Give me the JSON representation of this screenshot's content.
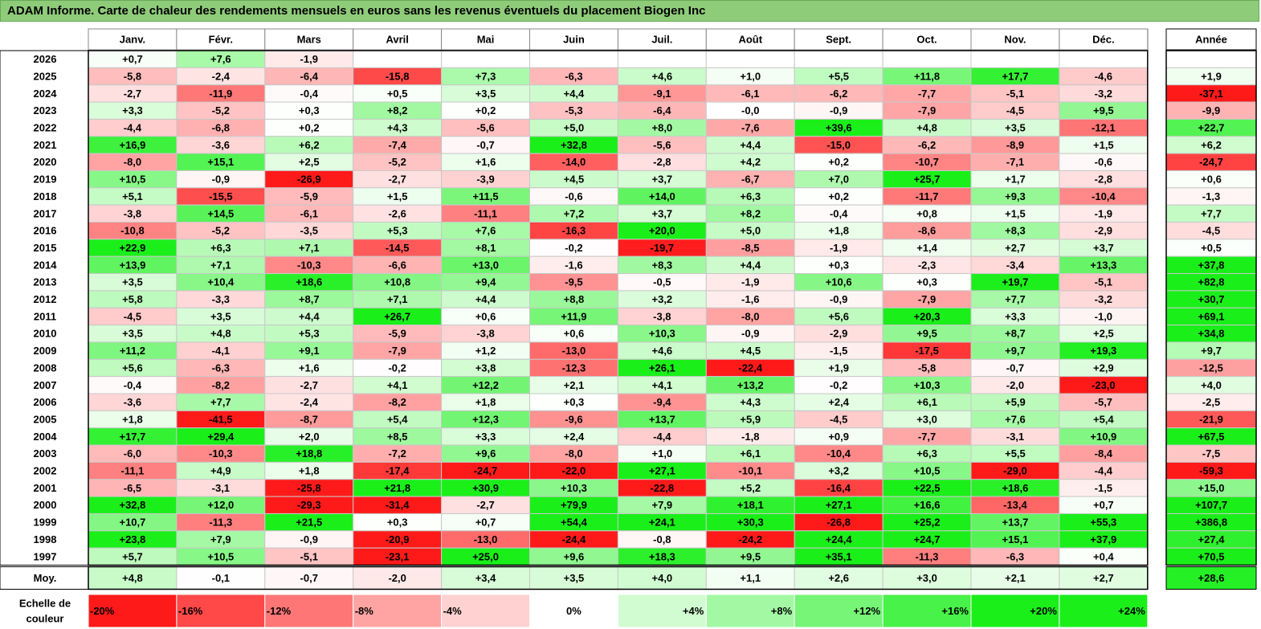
{
  "title": "ADAM Informe. Carte de chaleur des rendements mensuels en euros sans les revenus éventuels du placement Biogen Inc",
  "chart_data": {
    "type": "heatmap",
    "title": "ADAM Informe. Carte de chaleur des rendements mensuels en euros sans les revenus éventuels du placement Biogen Inc",
    "columns": [
      "Janv.",
      "Févr.",
      "Mars",
      "Avril",
      "Mai",
      "Juin",
      "Juil.",
      "Août",
      "Sept.",
      "Oct.",
      "Nov.",
      "Déc."
    ],
    "year_column_label": "Année",
    "rows": [
      {
        "year": "2026",
        "values": [
          "+0,7",
          "+7,6",
          "-1,9",
          "",
          "",
          "",
          "",
          "",
          "",
          "",
          "",
          ""
        ],
        "annual": ""
      },
      {
        "year": "2025",
        "values": [
          "-5,8",
          "-2,4",
          "-6,4",
          "-15,8",
          "+7,3",
          "-6,3",
          "+4,6",
          "+1,0",
          "+5,5",
          "+11,8",
          "+17,7",
          "-4,6"
        ],
        "annual": "+1,9"
      },
      {
        "year": "2024",
        "values": [
          "-2,7",
          "-11,9",
          "-0,4",
          "+0,5",
          "+3,5",
          "+4,4",
          "-9,1",
          "-6,1",
          "-6,2",
          "-7,7",
          "-5,1",
          "-3,2"
        ],
        "annual": "-37,1"
      },
      {
        "year": "2023",
        "values": [
          "+3,3",
          "-5,2",
          "+0,3",
          "+8,2",
          "+0,2",
          "-5,3",
          "-6,4",
          "-0,0",
          "-0,9",
          "-7,9",
          "-4,5",
          "+9,5"
        ],
        "annual": "-9,9"
      },
      {
        "year": "2022",
        "values": [
          "-4,4",
          "-6,8",
          "+0,2",
          "+4,3",
          "-5,6",
          "+5,0",
          "+8,0",
          "-7,6",
          "+39,6",
          "+4,8",
          "+3,5",
          "-12,1"
        ],
        "annual": "+22,7"
      },
      {
        "year": "2021",
        "values": [
          "+16,9",
          "-3,6",
          "+6,2",
          "-7,4",
          "-0,7",
          "+32,8",
          "-5,6",
          "+4,4",
          "-15,0",
          "-6,2",
          "-8,9",
          "+1,5"
        ],
        "annual": "+6,2"
      },
      {
        "year": "2020",
        "values": [
          "-8,0",
          "+15,1",
          "+2,5",
          "-5,2",
          "+1,6",
          "-14,0",
          "-2,8",
          "+4,2",
          "+0,2",
          "-10,7",
          "-7,1",
          "-0,6"
        ],
        "annual": "-24,7"
      },
      {
        "year": "2019",
        "values": [
          "+10,5",
          "-0,9",
          "-26,9",
          "-2,7",
          "-3,9",
          "+4,5",
          "+3,7",
          "-6,7",
          "+7,0",
          "+25,7",
          "+1,7",
          "-2,8"
        ],
        "annual": "+0,6"
      },
      {
        "year": "2018",
        "values": [
          "+5,1",
          "-15,5",
          "-5,9",
          "+1,5",
          "+11,5",
          "-0,6",
          "+14,0",
          "+6,3",
          "+0,2",
          "-11,7",
          "+9,3",
          "-10,4"
        ],
        "annual": "-1,3"
      },
      {
        "year": "2017",
        "values": [
          "-3,8",
          "+14,5",
          "-6,1",
          "-2,6",
          "-11,1",
          "+7,2",
          "+3,7",
          "+8,2",
          "-0,4",
          "+0,8",
          "+1,5",
          "-1,9"
        ],
        "annual": "+7,7"
      },
      {
        "year": "2016",
        "values": [
          "-10,8",
          "-5,2",
          "-3,5",
          "+5,3",
          "+7,6",
          "-16,3",
          "+20,0",
          "+5,0",
          "+1,8",
          "-8,6",
          "+8,3",
          "-2,9"
        ],
        "annual": "-4,5"
      },
      {
        "year": "2015",
        "values": [
          "+22,9",
          "+6,3",
          "+7,1",
          "-14,5",
          "+8,1",
          "-0,2",
          "-19,7",
          "-8,5",
          "-1,9",
          "+1,4",
          "+2,7",
          "+3,7"
        ],
        "annual": "+0,5"
      },
      {
        "year": "2014",
        "values": [
          "+13,9",
          "+7,1",
          "-10,3",
          "-6,6",
          "+13,0",
          "-1,6",
          "+8,3",
          "+4,4",
          "+0,3",
          "-2,3",
          "-3,4",
          "+13,3"
        ],
        "annual": "+37,8"
      },
      {
        "year": "2013",
        "values": [
          "+3,5",
          "+10,4",
          "+18,6",
          "+10,8",
          "+9,4",
          "-9,5",
          "-0,5",
          "-1,9",
          "+10,6",
          "+0,3",
          "+19,7",
          "-5,1"
        ],
        "annual": "+82,8"
      },
      {
        "year": "2012",
        "values": [
          "+5,8",
          "-3,3",
          "+8,7",
          "+7,1",
          "+4,4",
          "+8,8",
          "+3,2",
          "-1,6",
          "-0,9",
          "-7,9",
          "+7,7",
          "-3,2"
        ],
        "annual": "+30,7"
      },
      {
        "year": "2011",
        "values": [
          "-4,5",
          "+3,5",
          "+4,4",
          "+26,7",
          "+0,6",
          "+11,9",
          "-3,8",
          "-8,0",
          "+5,6",
          "+20,3",
          "+3,3",
          "-1,0"
        ],
        "annual": "+69,1"
      },
      {
        "year": "2010",
        "values": [
          "+3,5",
          "+4,8",
          "+5,3",
          "-5,9",
          "-3,8",
          "+0,6",
          "+10,3",
          "-0,9",
          "-2,9",
          "+9,5",
          "+8,7",
          "+2,5"
        ],
        "annual": "+34,8"
      },
      {
        "year": "2009",
        "values": [
          "+11,2",
          "-4,1",
          "+9,1",
          "-7,9",
          "+1,2",
          "-13,0",
          "+4,6",
          "+4,5",
          "-1,5",
          "-17,5",
          "+9,7",
          "+19,3"
        ],
        "annual": "+9,7"
      },
      {
        "year": "2008",
        "values": [
          "+5,6",
          "-6,3",
          "+1,6",
          "-0,2",
          "+3,8",
          "-12,3",
          "+26,1",
          "-22,4",
          "+1,9",
          "-5,8",
          "-0,7",
          "+2,9"
        ],
        "annual": "-12,5"
      },
      {
        "year": "2007",
        "values": [
          "-0,4",
          "-8,2",
          "-2,7",
          "+4,1",
          "+12,2",
          "+2,1",
          "+4,1",
          "+13,2",
          "-0,2",
          "+10,3",
          "-2,0",
          "-23,0"
        ],
        "annual": "+4,0"
      },
      {
        "year": "2006",
        "values": [
          "-3,6",
          "+7,7",
          "-2,4",
          "-8,2",
          "+1,8",
          "+0,3",
          "-9,4",
          "+4,3",
          "+2,4",
          "+6,1",
          "+5,9",
          "-5,7"
        ],
        "annual": "-2,5"
      },
      {
        "year": "2005",
        "values": [
          "+1,8",
          "-41,5",
          "-8,7",
          "+5,4",
          "+12,3",
          "-9,6",
          "+13,7",
          "+5,9",
          "-4,5",
          "+3,0",
          "+7,6",
          "+5,4"
        ],
        "annual": "-21,9"
      },
      {
        "year": "2004",
        "values": [
          "+17,7",
          "+29,4",
          "+2,0",
          "+8,5",
          "+3,3",
          "+2,4",
          "-4,4",
          "-1,8",
          "+0,9",
          "-7,7",
          "-3,1",
          "+10,9"
        ],
        "annual": "+67,5"
      },
      {
        "year": "2003",
        "values": [
          "-6,0",
          "-10,3",
          "+18,8",
          "-7,2",
          "+9,6",
          "-8,0",
          "+1,0",
          "+6,1",
          "-10,4",
          "+6,3",
          "+5,5",
          "-8,4"
        ],
        "annual": "-7,5"
      },
      {
        "year": "2002",
        "values": [
          "-11,1",
          "+4,9",
          "+1,8",
          "-17,4",
          "-24,7",
          "-22,0",
          "+27,1",
          "-10,1",
          "+3,2",
          "+10,5",
          "-29,0",
          "-4,4"
        ],
        "annual": "-59,3"
      },
      {
        "year": "2001",
        "values": [
          "-6,5",
          "-3,1",
          "-25,8",
          "+21,8",
          "+30,9",
          "+10,3",
          "-22,8",
          "+5,2",
          "-16,4",
          "+22,5",
          "+18,6",
          "-1,5"
        ],
        "annual": "+15,0"
      },
      {
        "year": "2000",
        "values": [
          "+32,8",
          "+12,0",
          "-29,3",
          "-31,4",
          "-2,7",
          "+79,9",
          "+7,9",
          "+18,1",
          "+27,1",
          "+16,6",
          "-13,4",
          "+0,7"
        ],
        "annual": "+107,7"
      },
      {
        "year": "1999",
        "values": [
          "+10,7",
          "-11,3",
          "+21,5",
          "+0,3",
          "+0,7",
          "+54,4",
          "+24,1",
          "+30,3",
          "-26,8",
          "+25,2",
          "+13,7",
          "+55,3"
        ],
        "annual": "+386,8"
      },
      {
        "year": "1998",
        "values": [
          "+23,8",
          "+7,9",
          "-0,9",
          "-20,9",
          "-13,0",
          "-24,4",
          "-0,8",
          "-24,2",
          "+24,4",
          "+24,7",
          "+15,1",
          "+37,9"
        ],
        "annual": "+27,4"
      },
      {
        "year": "1997",
        "values": [
          "+5,7",
          "+10,5",
          "-5,1",
          "-23,1",
          "+25,0",
          "+9,6",
          "+18,3",
          "+9,5",
          "+35,1",
          "-11,3",
          "-6,3",
          "+0,4"
        ],
        "annual": "+70,5"
      }
    ],
    "average_row": {
      "label": "Moy.",
      "values": [
        "+4,8",
        "-0,1",
        "-0,7",
        "-2,0",
        "+3,4",
        "+3,5",
        "+4,0",
        "+1,1",
        "+2,6",
        "+3,0",
        "+2,1",
        "+2,7"
      ],
      "annual": "+28,6"
    },
    "color_scale": {
      "label": "Echelle de couleur",
      "stops": [
        "-20%",
        "-16%",
        "-12%",
        "-8%",
        "-4%",
        "0%",
        "+4%",
        "+8%",
        "+12%",
        "+16%",
        "+20%",
        "+24%"
      ],
      "stop_values": [
        -20,
        -16,
        -12,
        -8,
        -4,
        0,
        4,
        8,
        12,
        16,
        20,
        24
      ]
    },
    "colors": {
      "negative": "#ff1a1a",
      "neutral": "#ffffff",
      "positive": "#1aef1a",
      "title_bar": "#8fcc7a",
      "grid": "#c8c8c8"
    }
  }
}
